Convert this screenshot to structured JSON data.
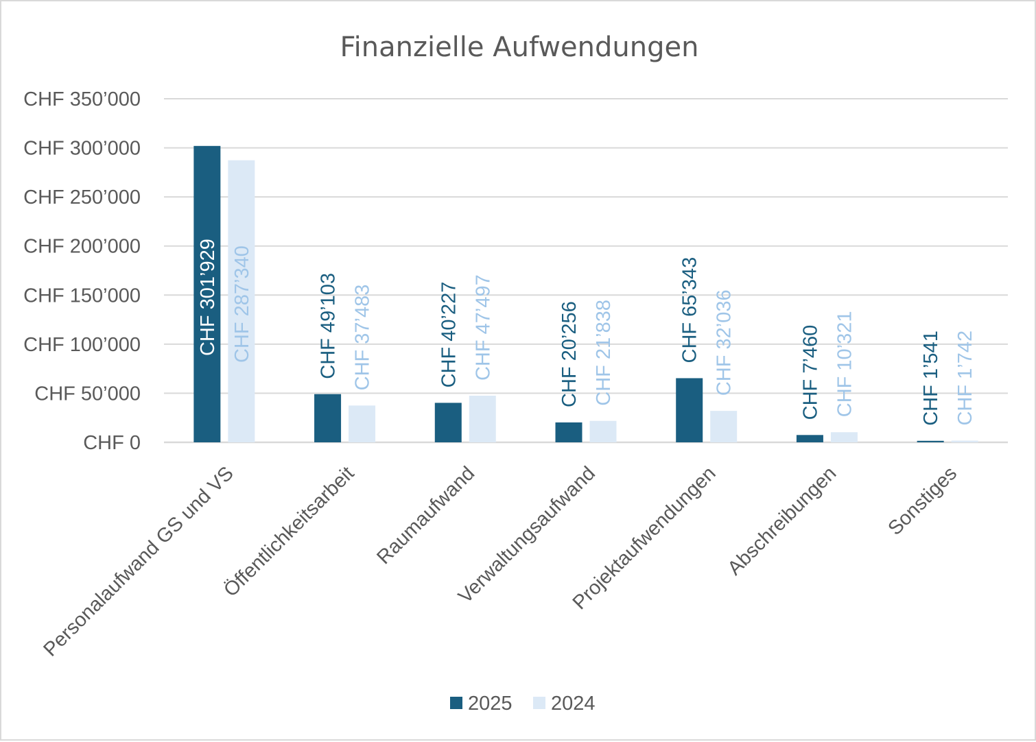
{
  "chart_data": {
    "type": "bar",
    "title": "Finanzielle Aufwendungen",
    "xlabel": "",
    "ylabel": "",
    "ylim": [
      0,
      350000
    ],
    "grid": true,
    "legend_position": "bottom",
    "y_ticks": [
      0,
      50000,
      100000,
      150000,
      200000,
      250000,
      300000,
      350000
    ],
    "y_tick_labels": [
      "CHF 0",
      "CHF 50’000",
      "CHF 100’000",
      "CHF 150’000",
      "CHF 200’000",
      "CHF 250’000",
      "CHF 300’000",
      "CHF 350’000"
    ],
    "categories": [
      "Personalaufwand GS und VS",
      "Öffentlichkeitsarbeit",
      "Raumaufwand",
      "Verwaltungsaufwand",
      "Projektaufwendungen",
      "Abschreibungen",
      "Sonstiges"
    ],
    "series": [
      {
        "name": "2025",
        "color": "#1a5e80",
        "label_color": "#1a5e80",
        "values": [
          301929,
          49103,
          40227,
          20256,
          65343,
          7460,
          1541
        ],
        "labels": [
          "CHF 301’929",
          "CHF 49’103",
          "CHF 40’227",
          "CHF 20’256",
          "CHF 65’343",
          "CHF 7’460",
          "CHF 1’541"
        ]
      },
      {
        "name": "2024",
        "color": "#dce9f6",
        "label_color": "#9fc5e8",
        "values": [
          287340,
          37483,
          47497,
          21838,
          32036,
          10321,
          1742
        ],
        "labels": [
          "CHF 287’340",
          "CHF 37’483",
          "CHF 47’497",
          "CHF 21’838",
          "CHF 32’036",
          "CHF 10’321",
          "CHF 1’742"
        ]
      }
    ],
    "inside_label_color_first_category": "#ffffff"
  }
}
